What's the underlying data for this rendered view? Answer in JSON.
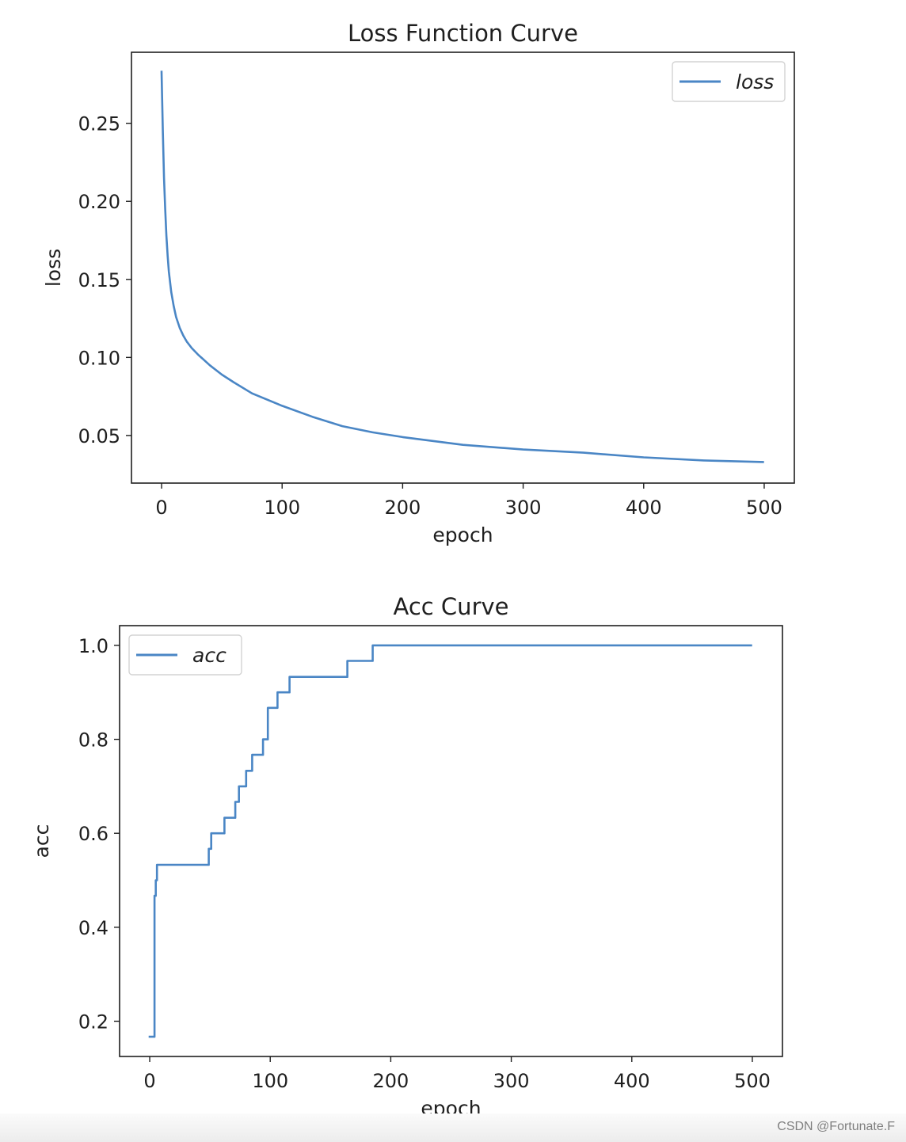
{
  "colors": {
    "line": "#4a86c5",
    "axis": "#1f1f1f",
    "background": "#ffffff",
    "legend_border": "#d3d3d3"
  },
  "watermark": "CSDN @Fortunate.F",
  "chart_data": [
    {
      "type": "line",
      "title": "Loss Function Curve",
      "xlabel": "epoch",
      "ylabel": "loss",
      "xlim": [
        -25,
        525
      ],
      "ylim": [
        0.0195,
        0.2955
      ],
      "xticks": [
        0,
        100,
        200,
        300,
        400,
        500
      ],
      "xtick_labels": [
        "0",
        "100",
        "200",
        "300",
        "400",
        "500"
      ],
      "yticks": [
        0.05,
        0.1,
        0.15,
        0.2,
        0.25
      ],
      "ytick_labels": [
        "0.05",
        "0.10",
        "0.15",
        "0.20",
        "0.25"
      ],
      "grid": false,
      "legend": "top-right",
      "series": [
        {
          "name": "loss",
          "x": [
            0,
            1,
            2,
            3,
            4,
            5,
            6,
            8,
            10,
            12,
            15,
            18,
            21,
            25,
            30,
            40,
            50,
            60,
            75,
            100,
            125,
            150,
            175,
            200,
            250,
            300,
            350,
            400,
            450,
            499
          ],
          "values": [
            0.283,
            0.245,
            0.215,
            0.195,
            0.178,
            0.165,
            0.155,
            0.142,
            0.133,
            0.126,
            0.119,
            0.114,
            0.11,
            0.106,
            0.102,
            0.095,
            0.089,
            0.084,
            0.077,
            0.069,
            0.062,
            0.056,
            0.052,
            0.049,
            0.044,
            0.041,
            0.039,
            0.036,
            0.034,
            0.033
          ]
        }
      ]
    },
    {
      "type": "line",
      "title": "Acc Curve",
      "xlabel": "epoch",
      "ylabel": "acc",
      "xlim": [
        -25,
        525
      ],
      "ylim": [
        0.125,
        1.042
      ],
      "xticks": [
        0,
        100,
        200,
        300,
        400,
        500
      ],
      "xtick_labels": [
        "0",
        "100",
        "200",
        "300",
        "400",
        "500"
      ],
      "yticks": [
        0.2,
        0.4,
        0.6,
        0.8,
        1.0
      ],
      "ytick_labels": [
        "0.2",
        "0.4",
        "0.6",
        "0.8",
        "1.0"
      ],
      "grid": false,
      "legend": "top-left",
      "series": [
        {
          "name": "acc",
          "x": [
            0,
            4,
            4,
            5,
            5,
            6,
            6,
            49,
            49,
            51,
            51,
            55,
            55,
            62,
            62,
            71,
            71,
            74,
            74,
            80,
            80,
            85,
            85,
            94,
            94,
            98,
            98,
            106,
            106,
            116,
            116,
            164,
            164,
            185,
            185,
            499
          ],
          "values": [
            0.167,
            0.167,
            0.467,
            0.467,
            0.5,
            0.5,
            0.533,
            0.533,
            0.567,
            0.567,
            0.6,
            0.6,
            0.6,
            0.6,
            0.633,
            0.633,
            0.667,
            0.667,
            0.7,
            0.7,
            0.733,
            0.733,
            0.767,
            0.767,
            0.8,
            0.8,
            0.867,
            0.867,
            0.9,
            0.9,
            0.933,
            0.933,
            0.967,
            0.967,
            1.0,
            1.0
          ]
        }
      ]
    }
  ]
}
